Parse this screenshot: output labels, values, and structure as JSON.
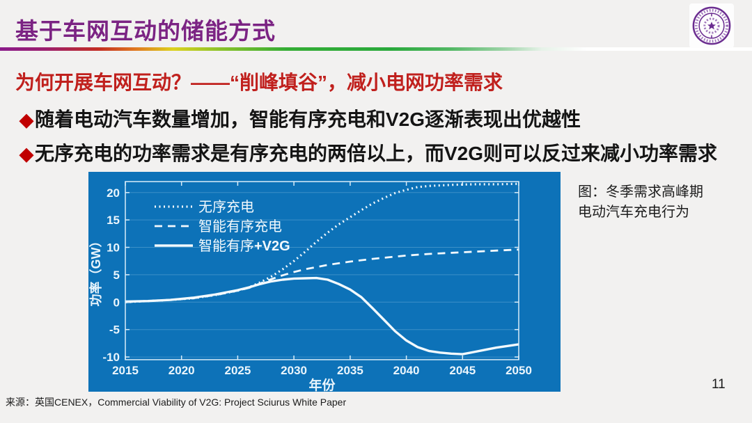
{
  "slide": {
    "title": "基于车网互动的储能方式",
    "heading": "为何开展车网互动？——“削峰填谷”，减小电网功率需求",
    "bullets": [
      "随着电动汽车数量增加，智能有序充电和V2G逐渐表现出优越性",
      "无序充电的功率需求是有序充电的两倍以上，而V2G则可以反过来减小功率需求"
    ],
    "bullet_marker": "◆",
    "caption_line1": "图：冬季需求高峰期",
    "caption_line2": "电动汽车充电行为",
    "source": "来源：英国CENEX，Commercial Viability of V2G: Project Sciurus White Paper",
    "page_number": "11",
    "colors": {
      "title_purple": "#7b2383",
      "heading_red": "#c0201d",
      "bullet_diamond_red": "#c00000",
      "chart_background_blue": "#0d72b8",
      "chart_line_white": "#f2f9fd"
    }
  },
  "chart_data": {
    "type": "line",
    "title": "",
    "xlabel": "年份",
    "ylabel": "功率（GW）",
    "xlim": [
      2015,
      2050
    ],
    "ylim": [
      -10.5,
      22
    ],
    "x_ticks": [
      2015,
      2020,
      2025,
      2030,
      2035,
      2040,
      2045,
      2050
    ],
    "y_ticks": [
      -10,
      -5,
      0,
      5,
      10,
      15,
      20
    ],
    "grid": "horizontal",
    "legend_position": "top-left",
    "background": "#0d72b8",
    "series": [
      {
        "name": "无序充电",
        "style": "dotted",
        "x": [
          2015,
          2017,
          2019,
          2021,
          2023,
          2025,
          2026,
          2027,
          2028,
          2029,
          2030,
          2031,
          2032,
          2033,
          2034,
          2035,
          2036,
          2037,
          2038,
          2039,
          2040,
          2041,
          2042,
          2043,
          2044,
          2046,
          2048,
          2050
        ],
        "y": [
          0,
          0.2,
          0.4,
          0.7,
          1.3,
          2.1,
          2.7,
          3.6,
          4.7,
          6,
          7.5,
          9.2,
          11,
          12.7,
          14.2,
          15.5,
          16.8,
          18,
          19,
          19.9,
          20.5,
          21,
          21.2,
          21.3,
          21.4,
          21.5,
          21.5,
          21.6
        ]
      },
      {
        "name": "智能有序充电",
        "style": "dashed",
        "x": [
          2015,
          2017,
          2019,
          2021,
          2023,
          2025,
          2026,
          2027,
          2028,
          2029,
          2030,
          2031,
          2032,
          2033,
          2034,
          2035,
          2037,
          2040,
          2042,
          2045,
          2048,
          2050
        ],
        "y": [
          0,
          0.2,
          0.4,
          0.7,
          1.3,
          2.1,
          2.6,
          3.4,
          4.2,
          4.9,
          5.5,
          6,
          6.4,
          6.8,
          7.1,
          7.4,
          7.9,
          8.5,
          8.8,
          9.1,
          9.4,
          9.6
        ]
      },
      {
        "name": "智能有序+V2G",
        "style": "solid",
        "x": [
          2015,
          2017,
          2019,
          2021,
          2023,
          2025,
          2026,
          2027,
          2028,
          2029,
          2030,
          2031,
          2032,
          2033,
          2034,
          2035,
          2036,
          2037,
          2038,
          2039,
          2040,
          2041,
          2042,
          2043,
          2044,
          2045,
          2046,
          2047,
          2048,
          2049,
          2050
        ],
        "y": [
          0.1,
          0.2,
          0.4,
          0.8,
          1.4,
          2.2,
          2.7,
          3.3,
          3.8,
          4.1,
          4.3,
          4.35,
          4.4,
          4.1,
          3.3,
          2.3,
          0.9,
          -1.1,
          -3.2,
          -5.3,
          -7,
          -8.2,
          -8.9,
          -9.2,
          -9.4,
          -9.5,
          -9.1,
          -8.7,
          -8.3,
          -8,
          -7.7
        ]
      }
    ]
  }
}
